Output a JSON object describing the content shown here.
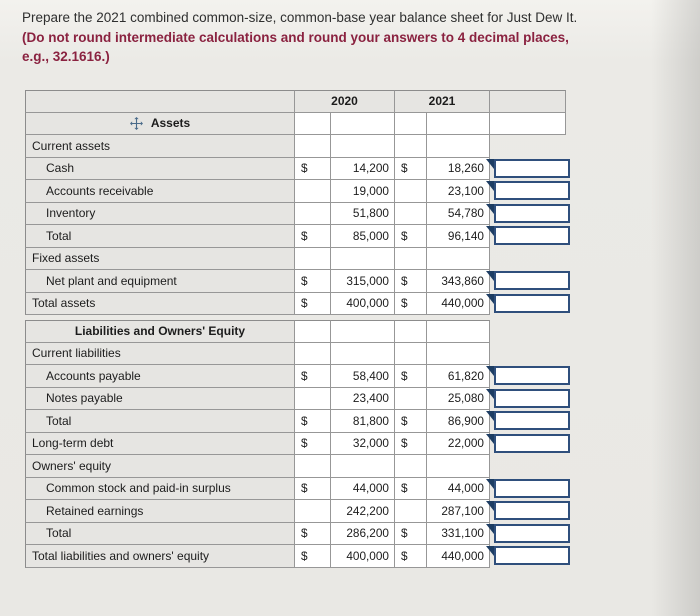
{
  "instruction": {
    "normal": "Prepare the 2021 combined common-size, common-base year balance sheet for Just Dew It. ",
    "bold": "(Do not round intermediate calculations and round your answers to 4 decimal places, e.g., 32.1616.)"
  },
  "colors": {
    "instruction_accent": "#8a2240",
    "input_border": "#2f4f7c",
    "marker": "#1d3d63",
    "cell_gray": "#e6e5e2",
    "icon_blue": "#4a6b8a"
  },
  "icons": {
    "move": "move-crosshair",
    "answer_marker": "triangle-flag"
  },
  "table": {
    "columns": {
      "y2020": "2020",
      "y2021": "2021"
    },
    "rows": [
      {
        "kind": "colhead"
      },
      {
        "kind": "assets_header",
        "label": "Assets"
      },
      {
        "kind": "section",
        "label": "Current assets"
      },
      {
        "kind": "data",
        "label": "Cash",
        "indent": true,
        "s2020": "$",
        "a2020": "14,200",
        "s2021": "$",
        "a2021": "18,260",
        "value": ""
      },
      {
        "kind": "data",
        "label": "Accounts receivable",
        "indent": true,
        "s2020": "",
        "a2020": "19,000",
        "s2021": "",
        "a2021": "23,100",
        "value": ""
      },
      {
        "kind": "data",
        "label": "Inventory",
        "indent": true,
        "s2020": "",
        "a2020": "51,800",
        "s2021": "",
        "a2021": "54,780",
        "value": ""
      },
      {
        "kind": "data",
        "label": "Total",
        "indent": true,
        "s2020": "$",
        "a2020": "85,000",
        "s2021": "$",
        "a2021": "96,140",
        "value": ""
      },
      {
        "kind": "section",
        "label": "Fixed assets"
      },
      {
        "kind": "data",
        "label": "Net plant and equipment",
        "indent": true,
        "s2020": "$",
        "a2020": "315,000",
        "s2021": "$",
        "a2021": "343,860",
        "value": ""
      },
      {
        "kind": "data",
        "label": "Total assets",
        "indent": false,
        "s2020": "$",
        "a2020": "400,000",
        "s2021": "$",
        "a2021": "440,000",
        "value": ""
      },
      {
        "kind": "group_header",
        "label": "Liabilities and Owners' Equity"
      },
      {
        "kind": "section",
        "label": "Current liabilities"
      },
      {
        "kind": "data",
        "label": "Accounts payable",
        "indent": true,
        "s2020": "$",
        "a2020": "58,400",
        "s2021": "$",
        "a2021": "61,820",
        "value": ""
      },
      {
        "kind": "data",
        "label": "Notes payable",
        "indent": true,
        "s2020": "",
        "a2020": "23,400",
        "s2021": "",
        "a2021": "25,080",
        "value": ""
      },
      {
        "kind": "data",
        "label": "Total",
        "indent": true,
        "s2020": "$",
        "a2020": "81,800",
        "s2021": "$",
        "a2021": "86,900",
        "value": ""
      },
      {
        "kind": "data",
        "label": "Long-term debt",
        "indent": false,
        "s2020": "$",
        "a2020": "32,000",
        "s2021": "$",
        "a2021": "22,000",
        "value": ""
      },
      {
        "kind": "section",
        "label": "Owners' equity"
      },
      {
        "kind": "data",
        "label": "Common stock and paid-in surplus",
        "indent": true,
        "s2020": "$",
        "a2020": "44,000",
        "s2021": "$",
        "a2021": "44,000",
        "value": ""
      },
      {
        "kind": "data",
        "label": "Retained earnings",
        "indent": true,
        "s2020": "",
        "a2020": "242,200",
        "s2021": "",
        "a2021": "287,100",
        "value": ""
      },
      {
        "kind": "data",
        "label": "Total",
        "indent": true,
        "s2020": "$",
        "a2020": "286,200",
        "s2021": "$",
        "a2021": "331,100",
        "value": ""
      },
      {
        "kind": "data",
        "label": "Total liabilities and owners' equity",
        "indent": false,
        "s2020": "$",
        "a2020": "400,000",
        "s2021": "$",
        "a2021": "440,000",
        "value": ""
      }
    ]
  }
}
